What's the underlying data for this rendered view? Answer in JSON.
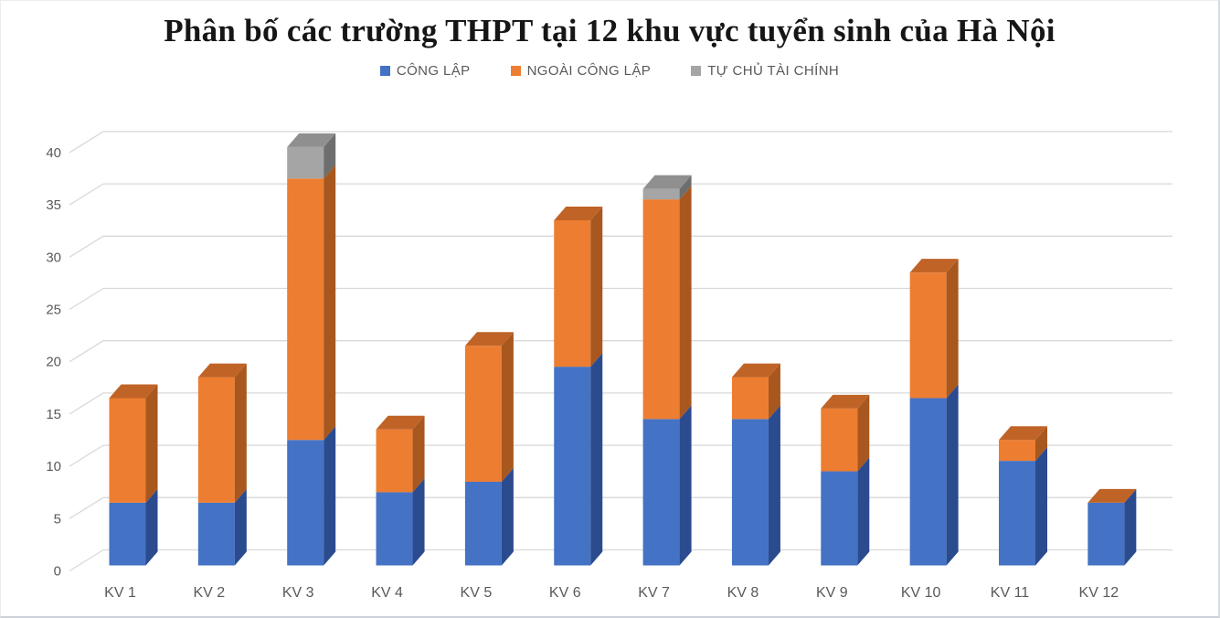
{
  "title": "Phân bố các trường THPT tại 12 khu vực tuyển sinh của Hà Nội",
  "legend": [
    {
      "label": "CÔNG LẬP",
      "color": "#4472C4"
    },
    {
      "label": "NGOÀI CÔNG LẬP",
      "color": "#ED7D31"
    },
    {
      "label": "TỰ CHỦ TÀI CHÍNH",
      "color": "#A5A5A5"
    }
  ],
  "chart_data": {
    "type": "bar",
    "stacked": true,
    "style": "3d-column",
    "title": "Phân bố các trường THPT tại 12 khu vực tuyển sinh của Hà Nội",
    "categories": [
      "KV 1",
      "KV 2",
      "KV 3",
      "KV 4",
      "KV 5",
      "KV 6",
      "KV 7",
      "KV 8",
      "KV 9",
      "KV 10",
      "KV 11",
      "KV 12"
    ],
    "series": [
      {
        "name": "CÔNG LẬP",
        "color": "#4472C4",
        "side_color": "#2B4B8F",
        "top_color": "#2E5394",
        "values": [
          6,
          6,
          12,
          7,
          8,
          19,
          14,
          14,
          9,
          16,
          10,
          6
        ]
      },
      {
        "name": "NGOÀI CÔNG LẬP",
        "color": "#ED7D31",
        "side_color": "#A8571E",
        "top_color": "#C06327",
        "values": [
          10,
          12,
          25,
          6,
          13,
          14,
          21,
          4,
          6,
          12,
          2,
          0
        ]
      },
      {
        "name": "TỰ CHỦ TÀI CHÍNH",
        "color": "#A5A5A5",
        "side_color": "#6E6E6E",
        "top_color": "#8F8F8F",
        "values": [
          0,
          0,
          3,
          0,
          0,
          0,
          1,
          0,
          0,
          0,
          0,
          0
        ]
      }
    ],
    "totals": [
      16,
      18,
      40,
      13,
      21,
      33,
      36,
      18,
      15,
      28,
      12,
      6
    ],
    "xlabel": "",
    "ylabel": "",
    "y_axis": {
      "min": 0,
      "max": 40,
      "step": 5,
      "ticks": [
        0,
        5,
        10,
        15,
        20,
        25,
        30,
        35,
        40
      ]
    },
    "grid": true,
    "gridline_color": "#D9D9D9",
    "axis_text_color": "#595959",
    "legend_position": "top"
  }
}
